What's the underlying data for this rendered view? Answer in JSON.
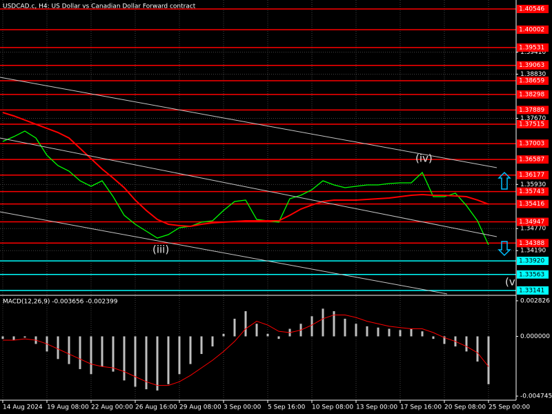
{
  "chart_data": [
    {
      "type": "line",
      "title": "USDCAD.c, H4:  US Dollar vs Canadian Dollar Forward contract",
      "annotations": [
        "(iii)",
        "(iv)",
        "(v"
      ],
      "xlim": [
        -1,
        186
      ],
      "xticks": [
        {
          "value": 0,
          "label": "14 Aug 2024"
        },
        {
          "value": 16,
          "label": "19 Aug 08:00"
        },
        {
          "value": 32,
          "label": "22 Aug 00:00"
        },
        {
          "value": 48,
          "label": "26 Aug 16:00"
        },
        {
          "value": 64,
          "label": "29 Aug 08:00"
        },
        {
          "value": 80,
          "label": "3 Sep 00:00"
        },
        {
          "value": 96,
          "label": "5 Sep 16:00"
        },
        {
          "value": 112,
          "label": "10 Sep 08:00"
        },
        {
          "value": 128,
          "label": "13 Sep 00:00"
        },
        {
          "value": 144,
          "label": "17 Sep 16:00"
        },
        {
          "value": 160,
          "label": "20 Sep 08:00"
        },
        {
          "value": 176,
          "label": "25 Sep 00:00"
        }
      ],
      "ylim": [
        1.33014,
        1.40782
      ],
      "yticks": [
        {
          "value": 1.3941,
          "label": "1.39410"
        },
        {
          "value": 1.3883,
          "label": "1.38830"
        },
        {
          "value": 1.3767,
          "label": "1.37670"
        },
        {
          "value": 1.3593,
          "label": "1.35930"
        },
        {
          "value": 1.3477,
          "label": "1.34770"
        },
        {
          "value": 1.3419,
          "label": "1.34190"
        }
      ],
      "grid": true,
      "levels": [
        {
          "value": 1.40546,
          "label": "1.40546",
          "color": "#ff0000"
        },
        {
          "value": 1.40002,
          "label": "1.40002",
          "color": "#ff0000"
        },
        {
          "value": 1.39531,
          "label": "1.39531",
          "color": "#ff0000"
        },
        {
          "value": 1.39063,
          "label": "1.39063",
          "color": "#ff0000"
        },
        {
          "value": 1.38659,
          "label": "1.38659",
          "color": "#ff0000"
        },
        {
          "value": 1.38298,
          "label": "1.38298",
          "color": "#ff0000"
        },
        {
          "value": 1.37889,
          "label": "1.37889",
          "color": "#ff0000"
        },
        {
          "value": 1.37515,
          "label": "1.37515",
          "color": "#ff0000"
        },
        {
          "value": 1.37003,
          "label": "1.37003",
          "color": "#ff0000"
        },
        {
          "value": 1.36587,
          "label": "1.36587",
          "color": "#ff0000"
        },
        {
          "value": 1.36177,
          "label": "1.36177",
          "color": "#ff0000"
        },
        {
          "value": 1.35743,
          "label": "1.35743",
          "color": "#ff0000"
        },
        {
          "value": 1.35416,
          "label": "1.35416",
          "color": "#ff0000"
        },
        {
          "value": 1.34947,
          "label": "1.34947",
          "color": "#ff0000"
        },
        {
          "value": 1.34388,
          "label": "1.34388",
          "color": "#ff0000"
        },
        {
          "value": 1.3392,
          "label": "1.33920",
          "color": "#00ffff"
        },
        {
          "value": 1.33563,
          "label": "1.33563",
          "color": "#00ffff"
        },
        {
          "value": 1.33141,
          "label": "1.33141",
          "color": "#00ffff"
        }
      ],
      "x": [
        0,
        4,
        8,
        12,
        16,
        20,
        24,
        28,
        32,
        36,
        40,
        44,
        48,
        52,
        56,
        60,
        64,
        68,
        72,
        76,
        80,
        84,
        88,
        92,
        96,
        100,
        104,
        108,
        112,
        116,
        120,
        124,
        128,
        132,
        136,
        140,
        144,
        148,
        152,
        156,
        160,
        164,
        168,
        172,
        176
      ],
      "series": [
        {
          "color": "#00ff00",
          "values": [
            1.37061,
            1.37188,
            1.37334,
            1.37152,
            1.36698,
            1.36426,
            1.36281,
            1.36027,
            1.35882,
            1.36027,
            1.35609,
            1.35119,
            1.34883,
            1.34702,
            1.3452,
            1.34611,
            1.34793,
            1.34829,
            1.34938,
            1.34974,
            1.35246,
            1.35482,
            1.35519,
            1.3501,
            1.34974,
            1.34938,
            1.35555,
            1.35646,
            1.35791,
            1.36027,
            1.35918,
            1.35845,
            1.35882,
            1.35918,
            1.35918,
            1.35954,
            1.35972,
            1.35972,
            1.36245,
            1.35609,
            1.35609,
            1.357,
            1.35374,
            1.34974,
            1.34339
          ]
        },
        {
          "color": "#ff0000",
          "values": [
            1.37823,
            1.37733,
            1.37624,
            1.37515,
            1.37406,
            1.37297,
            1.37152,
            1.3688,
            1.36607,
            1.36335,
            1.36099,
            1.35845,
            1.35519,
            1.35246,
            1.3501,
            1.34883,
            1.34847,
            1.34829,
            1.34883,
            1.34919,
            1.34938,
            1.34956,
            1.34974,
            1.34974,
            1.34974,
            1.34974,
            1.35119,
            1.35282,
            1.35391,
            1.35482,
            1.35519,
            1.35519,
            1.35519,
            1.35537,
            1.35555,
            1.35573,
            1.35609,
            1.35646,
            1.35664,
            1.35646,
            1.35646,
            1.35627,
            1.35609,
            1.35519,
            1.3541
          ]
        }
      ]
    },
    {
      "type": "macd",
      "title": "MACD(12,26,9) -0.003656 -0.002399",
      "ylim": [
        -0.00507,
        0.00315
      ],
      "yticks": [
        0.002826,
        {
          "value": 0,
          "label": "0.000000"
        },
        -0.004745
      ],
      "series": [
        {
          "color": "#c0c0c0",
          "values": [
            -0.0002,
            -0.0003,
            -0.0001,
            -0.0006,
            -0.0012,
            -0.0018,
            -0.0022,
            -0.0026,
            -0.003,
            -0.0024,
            -0.0028,
            -0.0035,
            -0.004,
            -0.0042,
            -0.0043,
            -0.0038,
            -0.003,
            -0.0022,
            -0.0014,
            -0.0008,
            0.0002,
            0.0014,
            0.002,
            0.001,
            0.0002,
            -0.0002,
            0.0006,
            0.001,
            0.0016,
            0.0022,
            0.002,
            0.0014,
            0.001,
            0.0008,
            0.0007,
            0.0006,
            0.0005,
            0.0006,
            0.0004,
            -0.0002,
            -0.0006,
            -0.0008,
            -0.0012,
            -0.002,
            -0.0038
          ]
        },
        {
          "color": "#ff0000",
          "values": [
            -0.0003,
            -0.0003,
            -0.0002,
            -0.0003,
            -0.0006,
            -0.001,
            -0.0014,
            -0.0018,
            -0.0022,
            -0.0024,
            -0.0025,
            -0.0028,
            -0.0032,
            -0.0036,
            -0.0039,
            -0.0039,
            -0.0036,
            -0.0031,
            -0.0025,
            -0.0019,
            -0.0012,
            -0.0004,
            0.0006,
            0.0012,
            0.0009,
            0.0004,
            0.0003,
            0.0005,
            0.0009,
            0.0014,
            0.0017,
            0.0017,
            0.0015,
            0.0012,
            0.001,
            0.0008,
            0.0007,
            0.0006,
            0.0006,
            0.0003,
            -0.0001,
            -0.0004,
            -0.0008,
            -0.0013,
            -0.0024
          ]
        }
      ]
    }
  ]
}
